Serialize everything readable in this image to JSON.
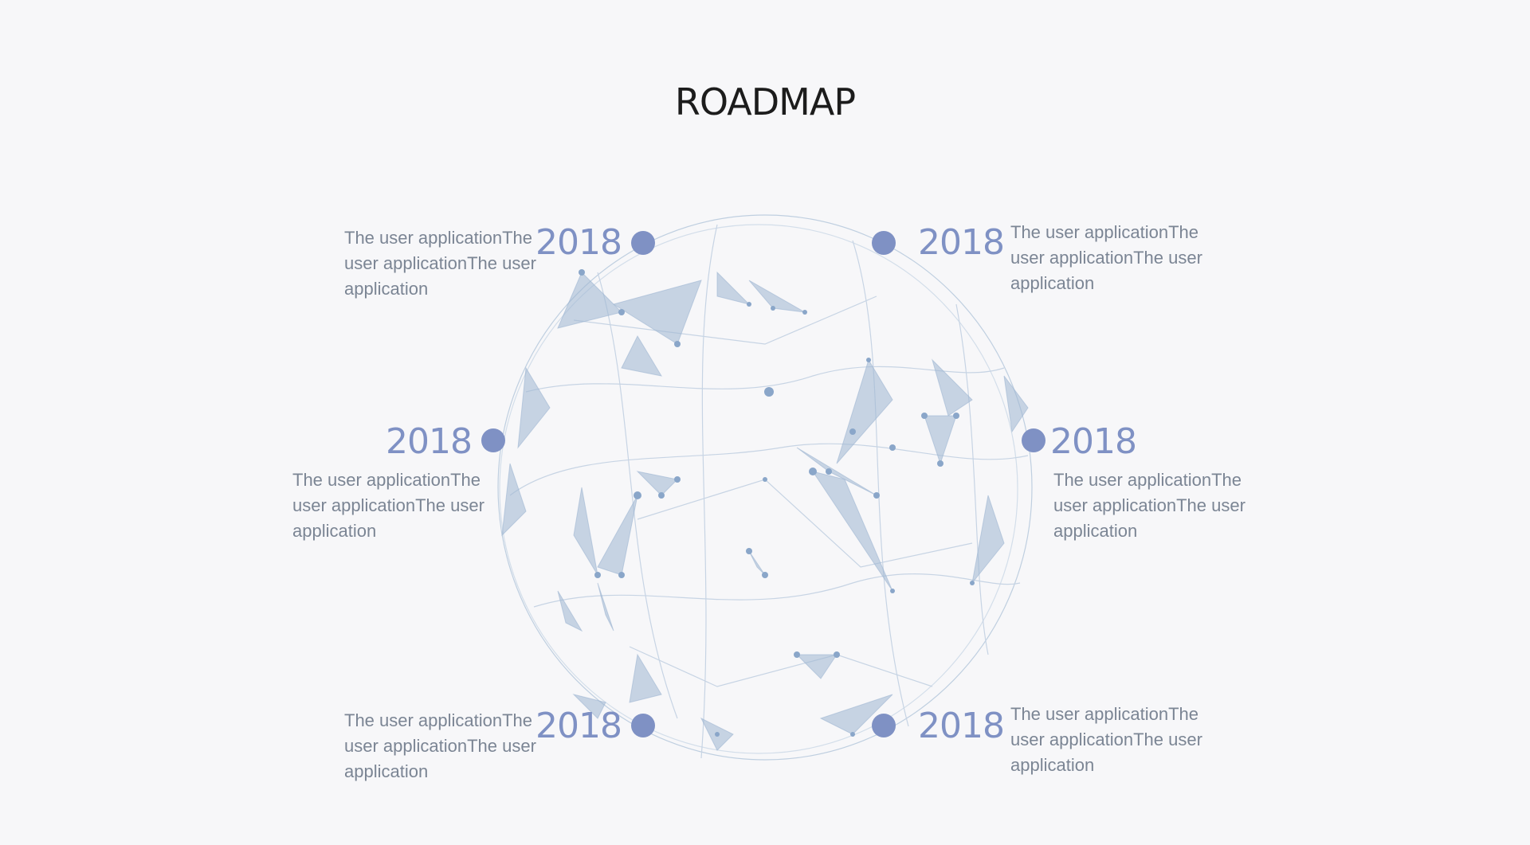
{
  "title": "ROADMAP",
  "milestones": [
    {
      "year": "2018",
      "text": "The user applicationThe user applicationThe user application"
    },
    {
      "year": "2018",
      "text": "The user applicationThe user applicationThe user application"
    },
    {
      "year": "2018",
      "text": "The user applicationThe user applicationThe user application"
    },
    {
      "year": "2018",
      "text": "The user applicationThe user applicationThe user application"
    },
    {
      "year": "2018",
      "text": "The user applicationThe user applicationThe user application"
    },
    {
      "year": "2018",
      "text": "The user applicationThe user applicationThe user application"
    }
  ],
  "colors": {
    "accent": "#7f91c4",
    "text": "#7b8594",
    "title": "#1c1c1c",
    "background": "#f7f7f9",
    "globe": "#a9bfd8"
  },
  "icons": {
    "globe": "network-globe-graphic",
    "milestone_marker": "circle-dot-icon"
  }
}
